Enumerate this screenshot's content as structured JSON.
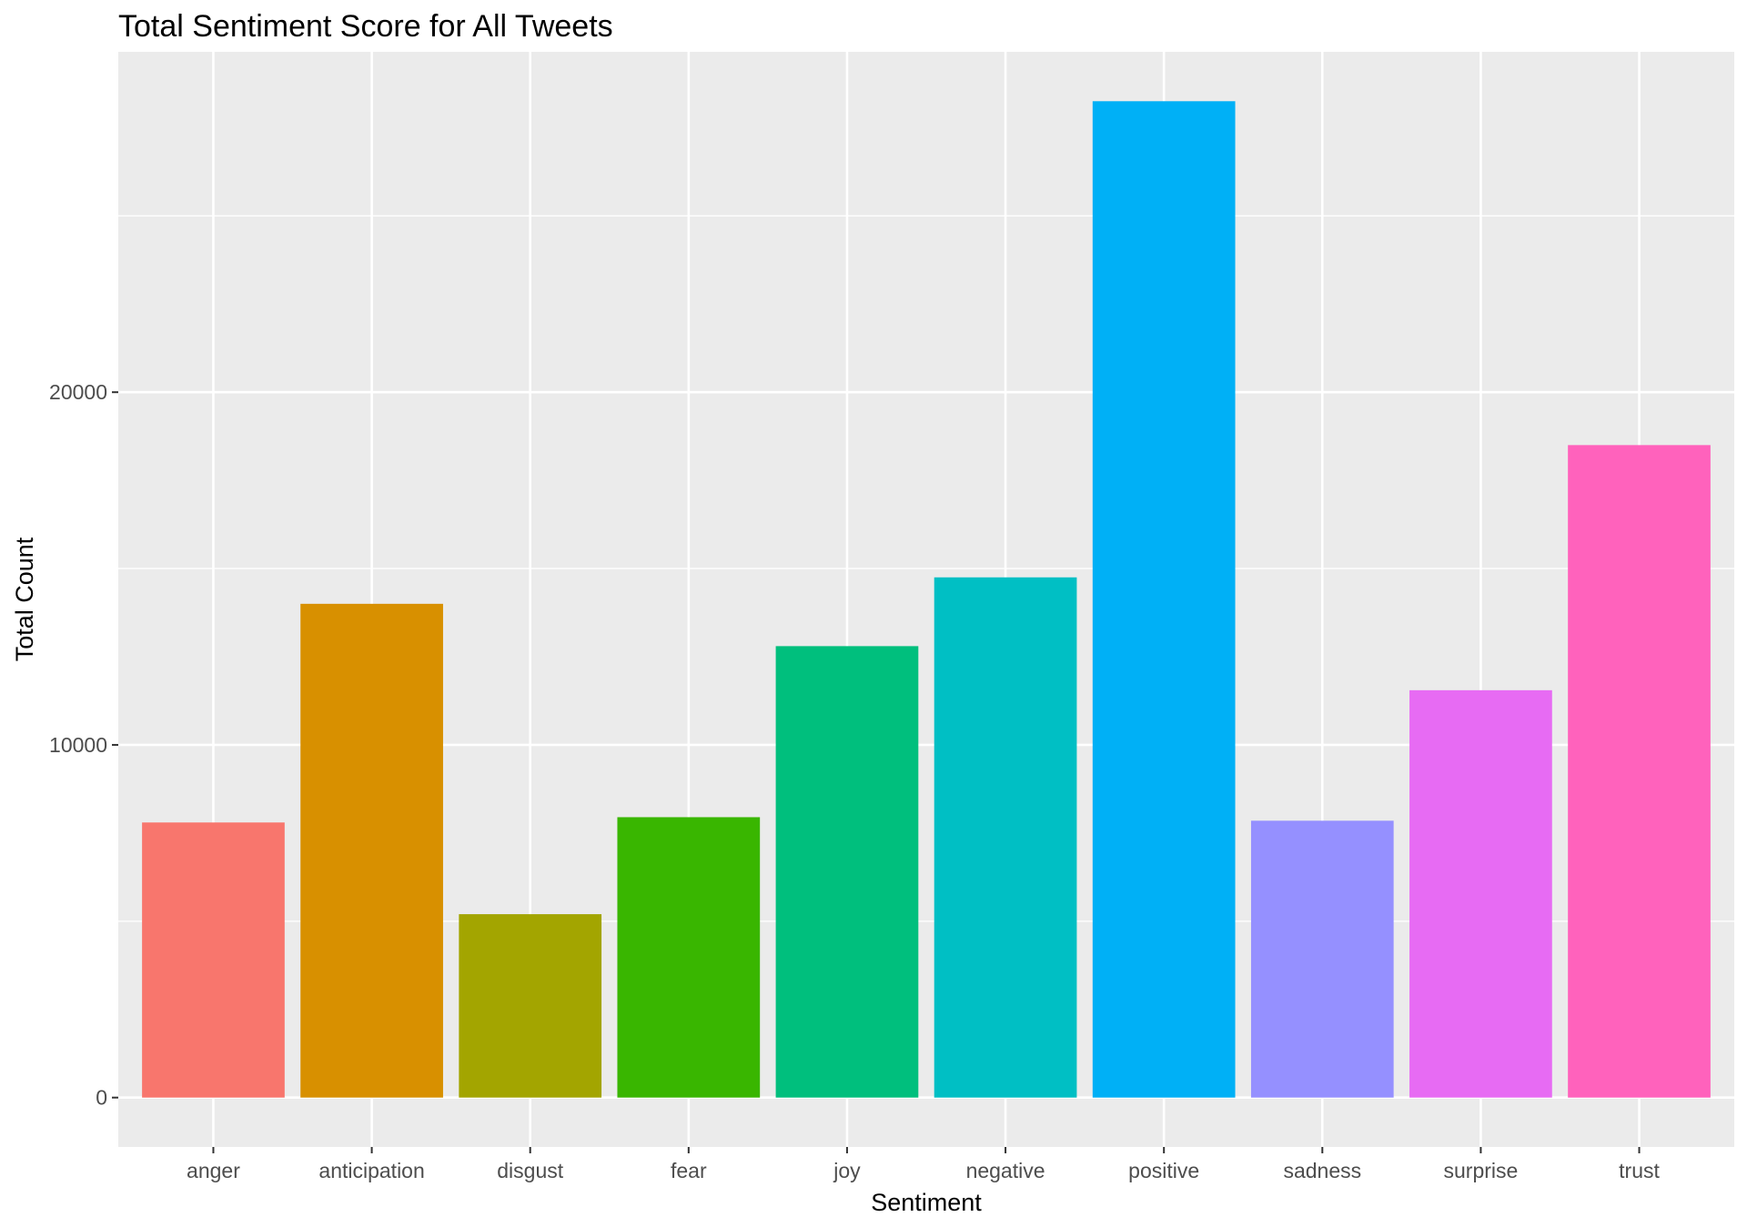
{
  "chart_data": {
    "type": "bar",
    "title": "Total Sentiment Score for All Tweets",
    "xlabel": "Sentiment",
    "ylabel": "Total Count",
    "categories": [
      "anger",
      "anticipation",
      "disgust",
      "fear",
      "joy",
      "negative",
      "positive",
      "sadness",
      "surprise",
      "trust"
    ],
    "values": [
      7800,
      14000,
      5200,
      7950,
      12800,
      14750,
      28250,
      7850,
      11550,
      18500
    ],
    "colors": [
      "#F8766D",
      "#D89000",
      "#A3A500",
      "#39B600",
      "#00BF7D",
      "#00BFC4",
      "#00B0F6",
      "#9590FF",
      "#E76BF3",
      "#FF62BC"
    ],
    "yticks": [
      0,
      10000,
      20000
    ],
    "ytick_labels": [
      "0",
      "10000",
      "20000"
    ],
    "ylim": [
      -1400,
      29650
    ],
    "grid": true,
    "legend": "none",
    "panel_background": "#EBEBEB",
    "grid_color": "#FFFFFF"
  }
}
